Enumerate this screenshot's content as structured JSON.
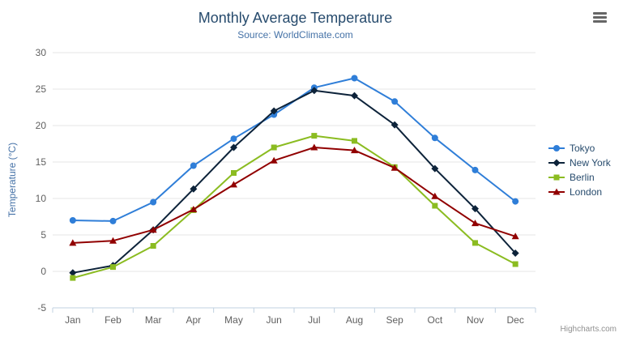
{
  "chart_data": {
    "type": "line",
    "title": "Monthly Average Temperature",
    "subtitle": "Source: WorldClimate.com",
    "categories": [
      "Jan",
      "Feb",
      "Mar",
      "Apr",
      "May",
      "Jun",
      "Jul",
      "Aug",
      "Sep",
      "Oct",
      "Nov",
      "Dec"
    ],
    "xlabel": "",
    "ylabel": "Temperature (°C)",
    "ylim": [
      -5,
      30
    ],
    "ytick_interval": 5,
    "grid": true,
    "legend_position": "right",
    "series": [
      {
        "name": "Tokyo",
        "color": "#2f7ed8",
        "marker": "circle",
        "values": [
          7.0,
          6.9,
          9.5,
          14.5,
          18.2,
          21.5,
          25.2,
          26.5,
          23.3,
          18.3,
          13.9,
          9.6
        ]
      },
      {
        "name": "New York",
        "color": "#0d233a",
        "marker": "diamond",
        "values": [
          -0.2,
          0.8,
          5.7,
          11.3,
          17.0,
          22.0,
          24.8,
          24.1,
          20.1,
          14.1,
          8.6,
          2.5
        ]
      },
      {
        "name": "Berlin",
        "color": "#8bbc21",
        "marker": "square",
        "values": [
          -0.9,
          0.6,
          3.5,
          8.4,
          13.5,
          17.0,
          18.6,
          17.9,
          14.3,
          9.0,
          3.9,
          1.0
        ]
      },
      {
        "name": "London",
        "color": "#910000",
        "marker": "triangle",
        "values": [
          3.9,
          4.2,
          5.7,
          8.5,
          11.9,
          15.2,
          17.0,
          16.6,
          14.2,
          10.3,
          6.6,
          4.8
        ]
      }
    ],
    "colors": {
      "grid": "#e6e6e6",
      "axis_line": "#c0d0e0",
      "tick_label": "#606060",
      "title": "#274b6d",
      "subtitle": "#4572a7",
      "legend_text": "#274b6d"
    }
  },
  "credits": "Highcharts.com"
}
